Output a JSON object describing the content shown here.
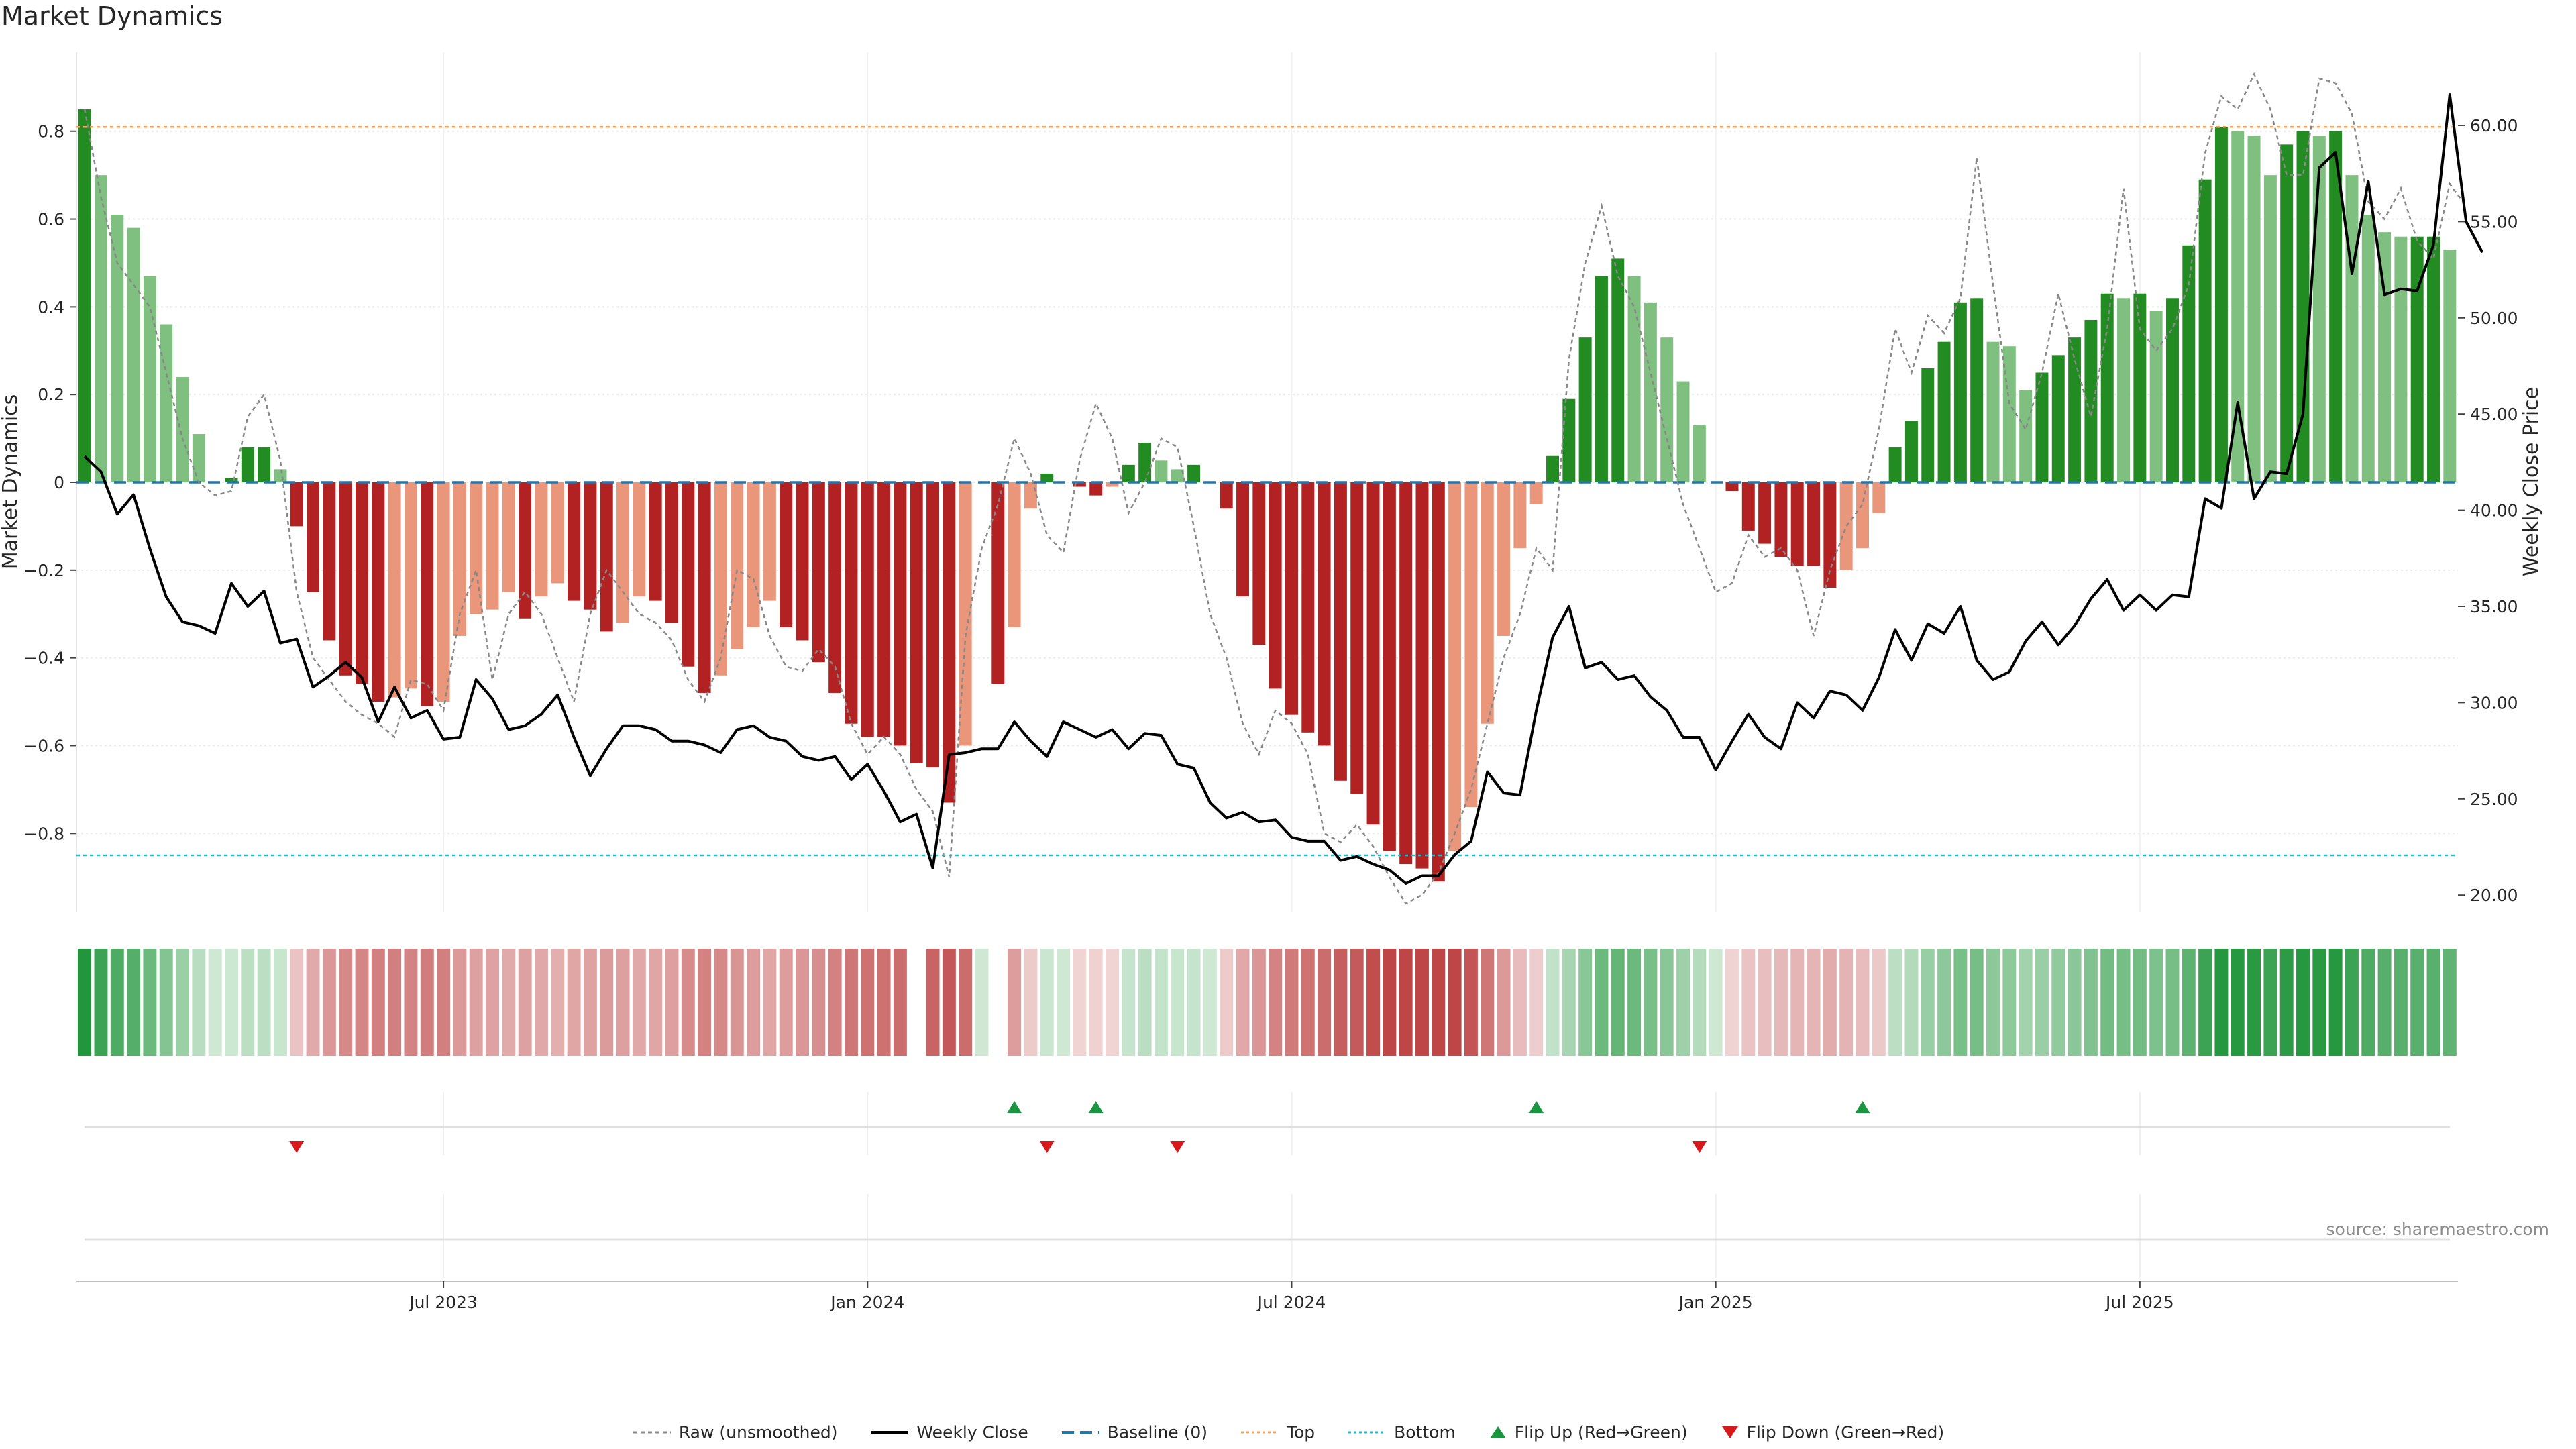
{
  "title": "Market Dynamics",
  "source_note": "source: sharemaestro.com",
  "colors": {
    "pos_strong": "#228b22",
    "pos_light": "#7fbf7f",
    "neg_strong": "#b22222",
    "neg_light": "#e9967a",
    "price_line": "#000000",
    "raw_line": "#888888",
    "baseline": "#1f77b4",
    "top": "#f4a460",
    "bottom": "#17becf",
    "flip_up": "#1a9641",
    "flip_down": "#d7191c"
  },
  "legend": [
    {
      "key": "raw",
      "label": "Raw (unsmoothed)"
    },
    {
      "key": "close",
      "label": "Weekly Close"
    },
    {
      "key": "base",
      "label": "Baseline (0)"
    },
    {
      "key": "top",
      "label": "Top"
    },
    {
      "key": "bottom",
      "label": "Bottom"
    },
    {
      "key": "up",
      "label": "Flip Up (Red→Green)"
    },
    {
      "key": "down",
      "label": "Flip Down (Green→Red)"
    }
  ],
  "chart_data": {
    "type": "bar",
    "title": "Market Dynamics",
    "ylabel_left": "Market Dynamics",
    "ylabel_right": "Weekly Close Price",
    "start_date": "2023-02-24",
    "interval": "weekly",
    "left_ticks": [
      {
        "value": 0.8,
        "label": "0.8"
      },
      {
        "value": 0.6,
        "label": "0.6"
      },
      {
        "value": 0.4,
        "label": "0.4"
      },
      {
        "value": 0.2,
        "label": "0.2"
      },
      {
        "value": 0,
        "label": "0"
      },
      {
        "value": -0.2,
        "label": "−0.2"
      },
      {
        "value": -0.4,
        "label": "−0.4"
      },
      {
        "value": -0.6,
        "label": "−0.6"
      },
      {
        "value": -0.8,
        "label": "−0.8"
      }
    ],
    "right_ticks": [
      {
        "value": 60,
        "label": "60.00"
      },
      {
        "value": 55,
        "label": "55.00"
      },
      {
        "value": 50,
        "label": "50.00"
      },
      {
        "value": 45,
        "label": "45.00"
      },
      {
        "value": 40,
        "label": "40.00"
      },
      {
        "value": 35,
        "label": "35.00"
      },
      {
        "value": 30,
        "label": "30.00"
      },
      {
        "value": 25,
        "label": "25.00"
      },
      {
        "value": 20,
        "label": "20.00"
      }
    ],
    "x_ticks": [
      {
        "week": 22,
        "label": "Jul 2023"
      },
      {
        "week": 48,
        "label": "Jan 2024"
      },
      {
        "week": 74,
        "label": "Jul 2024"
      },
      {
        "week": 100,
        "label": "Jan 2025"
      },
      {
        "week": 126,
        "label": "Jul 2025"
      }
    ],
    "top_level": 0.81,
    "bottom_level": -0.85,
    "baseline": 0,
    "ylim_left": [
      -0.98,
      0.98
    ],
    "ylim_right": [
      19.1,
      63.8
    ],
    "series": [
      {
        "name": "Market Dynamics",
        "values": [
          0.85,
          0.7,
          0.61,
          0.58,
          0.47,
          0.36,
          0.24,
          0.11,
          0.0,
          0.01,
          0.08,
          0.08,
          0.03,
          -0.1,
          -0.25,
          -0.36,
          -0.44,
          -0.46,
          -0.5,
          -0.49,
          -0.47,
          -0.51,
          -0.5,
          -0.35,
          -0.3,
          -0.29,
          -0.25,
          -0.31,
          -0.26,
          -0.23,
          -0.27,
          -0.29,
          -0.34,
          -0.32,
          -0.26,
          -0.27,
          -0.32,
          -0.42,
          -0.48,
          -0.44,
          -0.38,
          -0.33,
          -0.27,
          -0.33,
          -0.36,
          -0.41,
          -0.48,
          -0.55,
          -0.58,
          -0.58,
          -0.6,
          -0.64,
          -0.65,
          -0.73,
          -0.6,
          0.0,
          -0.46,
          -0.33,
          -0.06,
          0.02,
          0.0,
          -0.01,
          -0.03,
          -0.01,
          0.04,
          0.09,
          0.05,
          0.03,
          0.04,
          0.0,
          -0.06,
          -0.26,
          -0.37,
          -0.47,
          -0.53,
          -0.57,
          -0.6,
          -0.68,
          -0.71,
          -0.78,
          -0.84,
          -0.87,
          -0.88,
          -0.91,
          -0.84,
          -0.74,
          -0.55,
          -0.35,
          -0.15,
          -0.05,
          0.06,
          0.19,
          0.33,
          0.47,
          0.51,
          0.47,
          0.41,
          0.33,
          0.23,
          0.13,
          0.0,
          -0.02,
          -0.11,
          -0.14,
          -0.17,
          -0.19,
          -0.19,
          -0.24,
          -0.2,
          -0.15,
          -0.07,
          0.08,
          0.14,
          0.26,
          0.32,
          0.41,
          0.42,
          0.32,
          0.31,
          0.21,
          0.25,
          0.29,
          0.33,
          0.37,
          0.43,
          0.42,
          0.43,
          0.39,
          0.42,
          0.54,
          0.69,
          0.81,
          0.8,
          0.79,
          0.7,
          0.77,
          0.8,
          0.79,
          0.8,
          0.7,
          0.61,
          0.57,
          0.56,
          0.56,
          0.56,
          0.53
        ]
      },
      {
        "name": "Raw (unsmoothed)",
        "values": [
          0.85,
          0.65,
          0.5,
          0.45,
          0.4,
          0.25,
          0.1,
          0.0,
          -0.03,
          -0.02,
          0.15,
          0.2,
          0.05,
          -0.25,
          -0.4,
          -0.45,
          -0.5,
          -0.53,
          -0.55,
          -0.58,
          -0.45,
          -0.46,
          -0.52,
          -0.3,
          -0.2,
          -0.45,
          -0.3,
          -0.25,
          -0.3,
          -0.4,
          -0.5,
          -0.3,
          -0.2,
          -0.25,
          -0.3,
          -0.32,
          -0.36,
          -0.45,
          -0.5,
          -0.4,
          -0.2,
          -0.22,
          -0.35,
          -0.42,
          -0.43,
          -0.38,
          -0.42,
          -0.55,
          -0.62,
          -0.58,
          -0.62,
          -0.7,
          -0.75,
          -0.9,
          -0.35,
          -0.15,
          -0.05,
          0.1,
          0.02,
          -0.12,
          -0.16,
          0.05,
          0.18,
          0.1,
          -0.07,
          0.0,
          0.1,
          0.08,
          -0.1,
          -0.3,
          -0.4,
          -0.55,
          -0.62,
          -0.52,
          -0.55,
          -0.62,
          -0.8,
          -0.82,
          -0.78,
          -0.83,
          -0.9,
          -0.96,
          -0.94,
          -0.89,
          -0.8,
          -0.7,
          -0.55,
          -0.4,
          -0.3,
          -0.15,
          -0.2,
          0.28,
          0.5,
          0.63,
          0.47,
          0.4,
          0.25,
          0.1,
          -0.05,
          -0.15,
          -0.25,
          -0.23,
          -0.12,
          -0.17,
          -0.15,
          -0.2,
          -0.35,
          -0.2,
          -0.1,
          -0.05,
          0.12,
          0.35,
          0.25,
          0.38,
          0.34,
          0.42,
          0.74,
          0.45,
          0.18,
          0.12,
          0.25,
          0.43,
          0.28,
          0.15,
          0.35,
          0.67,
          0.35,
          0.3,
          0.35,
          0.45,
          0.75,
          0.88,
          0.85,
          0.93,
          0.85,
          0.7,
          0.7,
          0.92,
          0.91,
          0.84,
          0.64,
          0.6,
          0.67,
          0.55,
          0.51,
          0.68,
          0.63
        ]
      },
      {
        "name": "Weekly Close",
        "values": [
          42.8,
          42.0,
          39.8,
          40.8,
          38.0,
          35.5,
          34.2,
          34.0,
          33.6,
          36.2,
          35.0,
          35.8,
          33.1,
          33.3,
          30.8,
          31.4,
          32.1,
          31.3,
          29.0,
          30.8,
          29.2,
          29.6,
          28.1,
          28.2,
          31.2,
          30.2,
          28.6,
          28.8,
          29.4,
          30.4,
          28.2,
          26.2,
          27.6,
          28.8,
          28.8,
          28.6,
          28.0,
          28.0,
          27.8,
          27.4,
          28.6,
          28.8,
          28.2,
          28.0,
          27.2,
          27.0,
          27.2,
          26.0,
          26.8,
          25.4,
          23.8,
          24.2,
          21.4,
          27.3,
          27.4,
          27.6,
          27.6,
          29.0,
          28.0,
          27.2,
          29.0,
          28.6,
          28.2,
          28.6,
          27.6,
          28.4,
          28.3,
          26.8,
          26.6,
          24.8,
          24.0,
          24.3,
          23.8,
          23.9,
          23.0,
          22.8,
          22.8,
          21.8,
          22.0,
          21.6,
          21.3,
          20.6,
          21.0,
          21.0,
          22.1,
          22.8,
          26.4,
          25.3,
          25.2,
          29.6,
          33.4,
          35.0,
          31.8,
          32.1,
          31.2,
          31.4,
          30.3,
          29.6,
          28.2,
          28.2,
          26.5,
          28.0,
          29.4,
          28.2,
          27.6,
          30.0,
          29.2,
          30.6,
          30.4,
          29.6,
          31.3,
          33.8,
          32.2,
          34.1,
          33.6,
          35.0,
          32.2,
          31.2,
          31.6,
          33.2,
          34.2,
          33.0,
          34.0,
          35.4,
          36.4,
          34.8,
          35.6,
          34.8,
          35.6,
          35.5,
          40.6,
          40.1,
          45.6,
          40.6,
          42.0,
          41.9,
          45.0,
          57.8,
          58.6,
          52.3,
          57.1,
          51.2,
          51.5,
          51.4,
          53.8,
          61.6,
          55.0,
          53.4
        ]
      }
    ],
    "heat_gaps": [
      51,
      56
    ],
    "flip_up_weeks": [
      57,
      62,
      89,
      109
    ],
    "flip_down_weeks": [
      13,
      59,
      67,
      99
    ]
  }
}
